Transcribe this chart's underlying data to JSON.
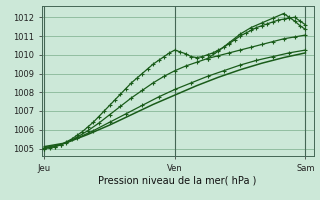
{
  "bg_color": "#cce8d8",
  "plot_bg_color": "#cce8d8",
  "grid_color": "#88b898",
  "line_color": "#1a5c1a",
  "title": "Pression niveau de la mer( hPa )",
  "ylabel_ticks": [
    1005,
    1006,
    1007,
    1008,
    1009,
    1010,
    1011,
    1012
  ],
  "x_tick_pos": [
    0,
    48,
    96
  ],
  "x_labels": [
    "Jeu",
    "Ven",
    "Sam"
  ],
  "ylim": [
    1004.6,
    1012.6
  ],
  "xlim": [
    -1,
    99
  ],
  "vlines": [
    0,
    48,
    96
  ],
  "line1_x": [
    0,
    2,
    4,
    6,
    8,
    10,
    12,
    14,
    16,
    18,
    20,
    22,
    24,
    26,
    28,
    30,
    32,
    34,
    36,
    38,
    40,
    42,
    44,
    46,
    48,
    50,
    52,
    54,
    56,
    58,
    60,
    62,
    64,
    66,
    68,
    70,
    72,
    74,
    76,
    78,
    80,
    82,
    84,
    86,
    88,
    90,
    92,
    94,
    96
  ],
  "line1_y": [
    1005.0,
    1005.05,
    1005.1,
    1005.2,
    1005.35,
    1005.5,
    1005.7,
    1005.9,
    1006.15,
    1006.4,
    1006.7,
    1007.0,
    1007.3,
    1007.6,
    1007.9,
    1008.2,
    1008.5,
    1008.75,
    1009.0,
    1009.25,
    1009.5,
    1009.7,
    1009.9,
    1010.1,
    1010.25,
    1010.15,
    1010.05,
    1009.9,
    1009.85,
    1009.9,
    1010.0,
    1010.1,
    1010.25,
    1010.4,
    1010.6,
    1010.8,
    1011.0,
    1011.15,
    1011.3,
    1011.45,
    1011.55,
    1011.65,
    1011.75,
    1011.85,
    1011.9,
    1011.95,
    1012.0,
    1011.8,
    1011.6
  ],
  "line2_x": [
    0,
    4,
    8,
    12,
    16,
    20,
    24,
    28,
    32,
    36,
    40,
    44,
    48,
    52,
    56,
    60,
    64,
    68,
    72,
    76,
    80,
    84,
    88,
    92,
    96
  ],
  "line2_y": [
    1005.0,
    1005.1,
    1005.3,
    1005.6,
    1005.95,
    1006.35,
    1006.8,
    1007.25,
    1007.7,
    1008.1,
    1008.5,
    1008.85,
    1009.15,
    1009.4,
    1009.6,
    1009.8,
    1009.95,
    1010.1,
    1010.25,
    1010.4,
    1010.55,
    1010.7,
    1010.85,
    1010.95,
    1011.05
  ],
  "line3_x": [
    0,
    6,
    12,
    18,
    24,
    30,
    36,
    42,
    48,
    54,
    60,
    66,
    72,
    78,
    84,
    90,
    96
  ],
  "line3_y": [
    1005.05,
    1005.2,
    1005.55,
    1005.95,
    1006.4,
    1006.85,
    1007.3,
    1007.75,
    1008.15,
    1008.5,
    1008.85,
    1009.15,
    1009.45,
    1009.7,
    1009.9,
    1010.1,
    1010.25
  ],
  "line4_x": [
    0,
    8,
    16,
    24,
    32,
    40,
    48,
    56,
    64,
    72,
    80,
    88,
    96
  ],
  "line4_y": [
    1005.1,
    1005.3,
    1005.75,
    1006.25,
    1006.8,
    1007.35,
    1007.85,
    1008.35,
    1008.8,
    1009.2,
    1009.55,
    1009.85,
    1010.1
  ],
  "line5_x": [
    60,
    64,
    68,
    72,
    76,
    80,
    84,
    88,
    90,
    92,
    94,
    96
  ],
  "line5_y": [
    1009.8,
    1010.2,
    1010.65,
    1011.1,
    1011.45,
    1011.7,
    1011.95,
    1012.2,
    1012.0,
    1011.8,
    1011.55,
    1011.35
  ],
  "tick_fontsize": 6,
  "label_fontsize": 7
}
